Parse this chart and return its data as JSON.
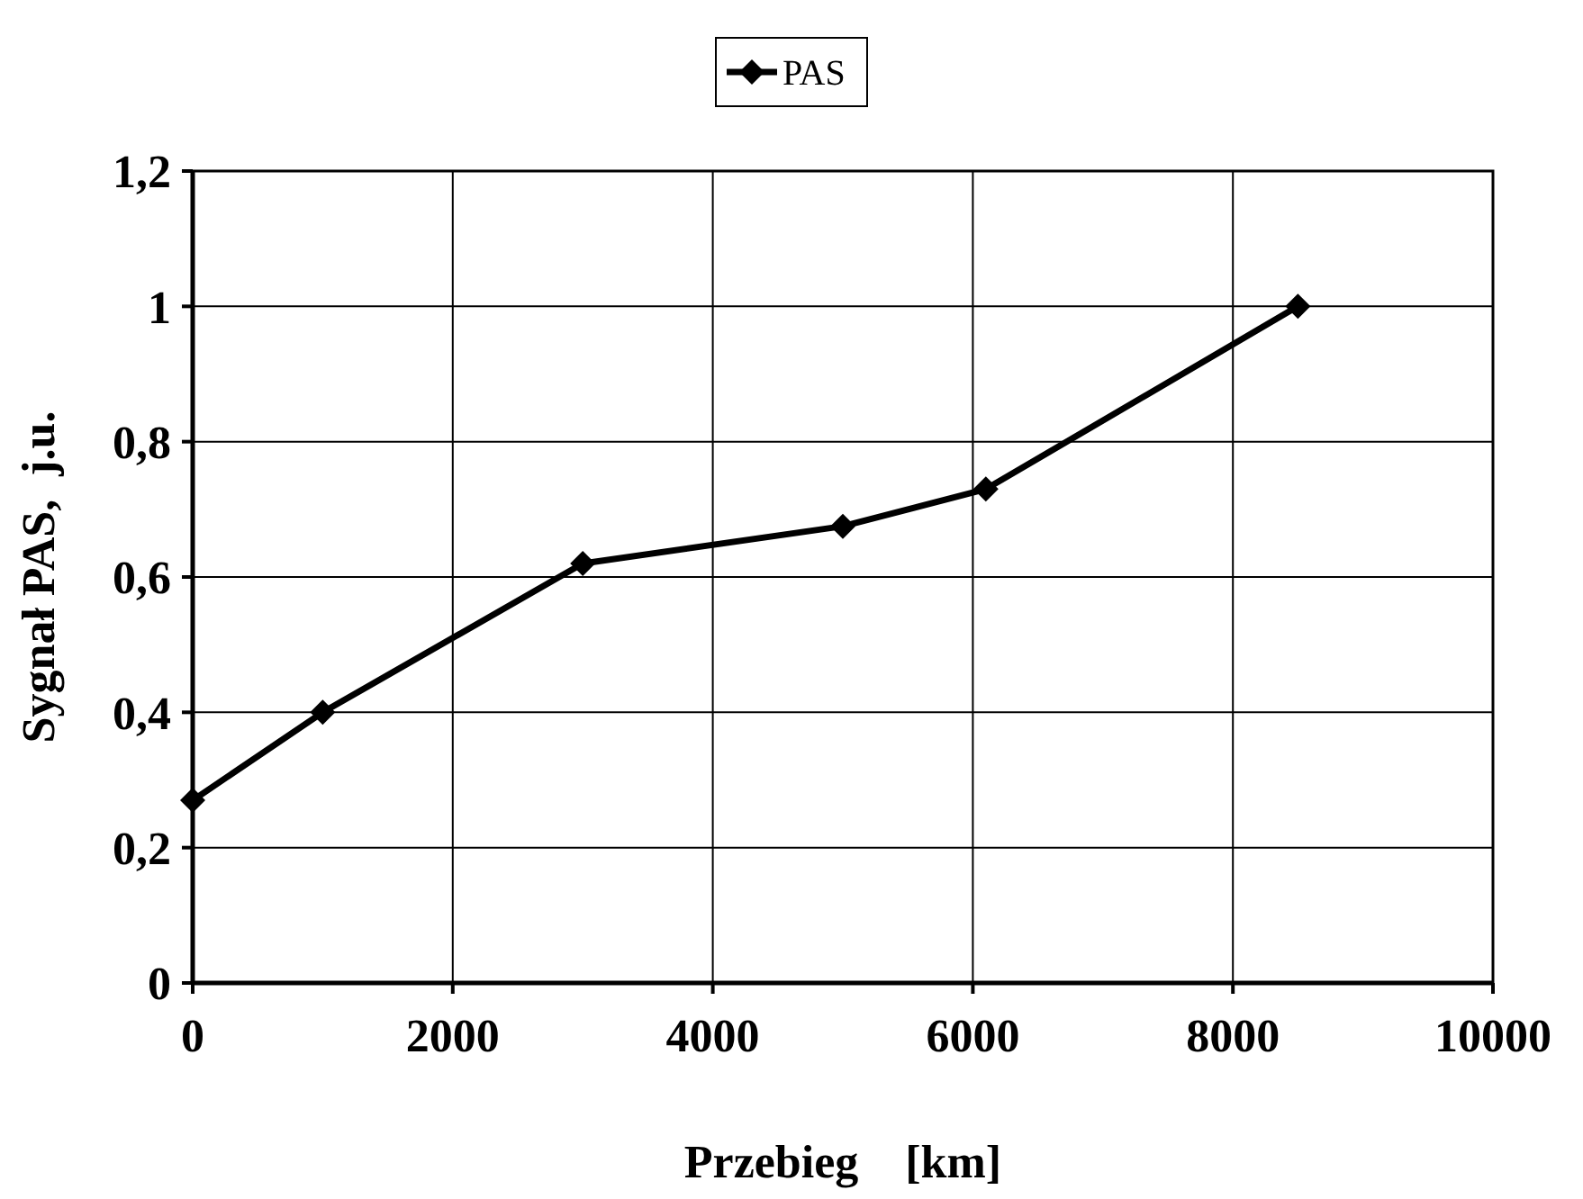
{
  "chart_data": {
    "type": "line",
    "xlabel": "Przebieg    [km]",
    "ylabel": "Sygnał PAS,  j.u.",
    "x": [
      0,
      1000,
      3000,
      5000,
      6100,
      8500
    ],
    "series": [
      {
        "name": "PAS",
        "color": "#000000",
        "values": [
          0.27,
          0.4,
          0.62,
          0.675,
          0.73,
          1.0
        ]
      }
    ],
    "xlim": [
      0,
      10000
    ],
    "xticks": [
      0,
      2000,
      4000,
      6000,
      8000,
      10000
    ],
    "ylim": [
      0,
      1.2
    ],
    "yticks": [
      0,
      {
        "value": 0.2,
        "label": "0,2"
      },
      {
        "value": 0.4,
        "label": "0,4"
      },
      {
        "value": 0.6,
        "label": "0,6"
      },
      {
        "value": 0.8,
        "label": "0,8"
      },
      1,
      {
        "value": 1.2,
        "label": "1,2"
      }
    ],
    "grid": true,
    "legend": "top",
    "marker": "diamond",
    "line_style": "solid"
  }
}
